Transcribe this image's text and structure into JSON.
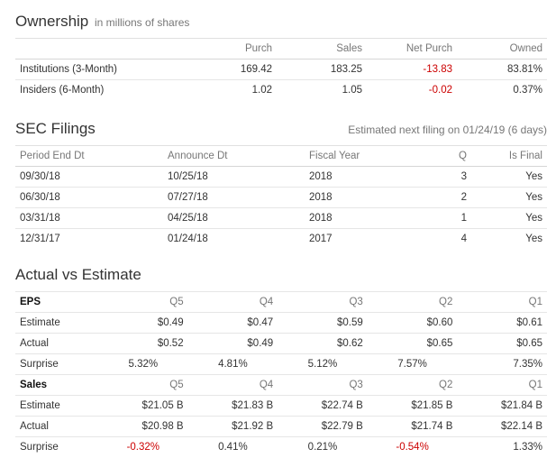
{
  "ownership": {
    "title": "Ownership",
    "subtitle": "in millions of shares",
    "headers": [
      "",
      "Purch",
      "Sales",
      "Net Purch",
      "Owned"
    ],
    "rows": [
      {
        "label": "Institutions (3-Month)",
        "purch": "169.42",
        "sales": "183.25",
        "net": "-13.83",
        "owned": "83.81%"
      },
      {
        "label": "Insiders (6-Month)",
        "purch": "1.02",
        "sales": "1.05",
        "net": "-0.02",
        "owned": "0.37%"
      }
    ]
  },
  "sec_filings": {
    "title": "SEC Filings",
    "note": "Estimated next filing on 01/24/19 (6 days)",
    "headers": [
      "Period End Dt",
      "Announce Dt",
      "Fiscal Year",
      "Q",
      "Is Final"
    ],
    "rows": [
      {
        "period": "09/30/18",
        "announce": "10/25/18",
        "year": "2018",
        "q": "3",
        "final": "Yes"
      },
      {
        "period": "06/30/18",
        "announce": "07/27/18",
        "year": "2018",
        "q": "2",
        "final": "Yes"
      },
      {
        "period": "03/31/18",
        "announce": "04/25/18",
        "year": "2018",
        "q": "1",
        "final": "Yes"
      },
      {
        "period": "12/31/17",
        "announce": "01/24/18",
        "year": "2017",
        "q": "4",
        "final": "Yes"
      }
    ]
  },
  "actual_vs_estimate": {
    "title": "Actual vs Estimate",
    "eps": {
      "label": "EPS",
      "quarters": [
        "Q5",
        "Q4",
        "Q3",
        "Q2",
        "Q1"
      ],
      "estimate": {
        "label": "Estimate",
        "values": [
          "$0.49",
          "$0.47",
          "$0.59",
          "$0.60",
          "$0.61"
        ]
      },
      "actual": {
        "label": "Actual",
        "values": [
          "$0.52",
          "$0.49",
          "$0.62",
          "$0.65",
          "$0.65"
        ]
      },
      "surprise": {
        "label": "Surprise",
        "values": [
          "5.32%",
          "4.81%",
          "5.12%",
          "7.57%",
          "7.35%"
        ]
      }
    },
    "sales": {
      "label": "Sales",
      "quarters": [
        "Q5",
        "Q4",
        "Q3",
        "Q2",
        "Q1"
      ],
      "estimate": {
        "label": "Estimate",
        "values": [
          "$21.05 B",
          "$21.83 B",
          "$22.74 B",
          "$21.85 B",
          "$21.84 B"
        ]
      },
      "actual": {
        "label": "Actual",
        "values": [
          "$20.98 B",
          "$21.92 B",
          "$22.79 B",
          "$21.74 B",
          "$22.14 B"
        ]
      },
      "surprise": {
        "label": "Surprise",
        "values": [
          "-0.32%",
          "0.41%",
          "0.21%",
          "-0.54%",
          "1.33%"
        ]
      }
    }
  },
  "colors": {
    "negative": "#cc0000",
    "text": "#333333",
    "muted": "#777777"
  }
}
